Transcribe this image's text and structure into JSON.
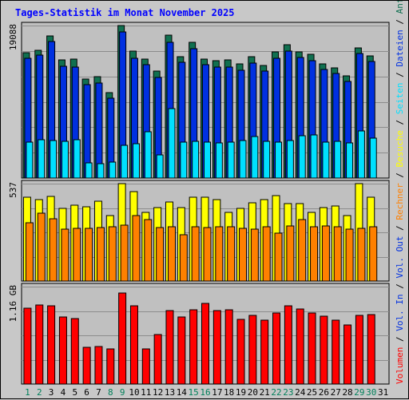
{
  "chart_data": {
    "type": "bar",
    "title": "Tages-Statistik im Monat November 2025",
    "colors": {
      "background": "#c8c8c8",
      "plot_bg": "#c0c0c0",
      "title": "#0000ff",
      "anfragen": "#107050",
      "dateien": "#0030e0",
      "seiten": "#00e0ff",
      "besuche": "#ffff00",
      "rechner": "#ff8000",
      "volumen": "#ff0000",
      "weekday_label": "#000000",
      "weekend_label": "#00805a",
      "text": "#000000"
    },
    "categories": [
      "1",
      "2",
      "3",
      "4",
      "5",
      "6",
      "7",
      "8",
      "9",
      "10",
      "11",
      "12",
      "13",
      "14",
      "15",
      "16",
      "17",
      "18",
      "19",
      "20",
      "21",
      "22",
      "23",
      "24",
      "25",
      "26",
      "27",
      "28",
      "29",
      "30",
      "31"
    ],
    "weekend_days": [
      "1",
      "2",
      "8",
      "9",
      "15",
      "16",
      "22",
      "23",
      "29",
      "30"
    ],
    "panels": [
      {
        "id": "top",
        "max_label": "19088",
        "ylim": [
          0,
          19088
        ],
        "series": [
          {
            "name": "Anfragen",
            "values": [
              15700,
              16000,
              17800,
              14800,
              14900,
              12400,
              12700,
              10700,
              19088,
              15900,
              14900,
              13400,
              17900,
              15200,
              17000,
              14900,
              14700,
              14800,
              14300,
              15200,
              14100,
              15800,
              16700,
              15800,
              15500,
              14300,
              13800,
              12800,
              16300,
              15300,
              null
            ]
          },
          {
            "name": "Dateien",
            "values": [
              15000,
              15400,
              17100,
              14000,
              13900,
              11700,
              11900,
              10000,
              18300,
              15000,
              14200,
              12600,
              17000,
              14500,
              16200,
              14200,
              13900,
              13900,
              13500,
              14400,
              13400,
              15000,
              15900,
              15100,
              14700,
              13600,
              13100,
              12100,
              15600,
              14600,
              null
            ]
          },
          {
            "name": "Seiten",
            "values": [
              4500,
              4800,
              4700,
              4600,
              4800,
              1900,
              1800,
              2000,
              4100,
              4300,
              5800,
              2900,
              8700,
              4500,
              4600,
              4500,
              4400,
              4500,
              4700,
              5200,
              4600,
              4500,
              4700,
              5300,
              5400,
              4500,
              4600,
              4400,
              5900,
              5000,
              null
            ]
          }
        ]
      },
      {
        "id": "mid",
        "max_label": "537",
        "ylim": [
          0,
          537
        ],
        "series": [
          {
            "name": "Besuche",
            "values": [
              460,
              450,
              465,
              400,
              420,
              410,
              440,
              360,
              537,
              495,
              380,
              405,
              435,
              405,
              460,
              460,
              450,
              380,
              400,
              430,
              450,
              470,
              425,
              425,
              380,
              405,
              415,
              360,
              537,
              460,
              null
            ]
          },
          {
            "name": "Rechner",
            "values": [
              320,
              375,
              345,
              285,
              290,
              290,
              295,
              300,
              310,
              360,
              340,
              295,
              300,
              255,
              300,
              295,
              300,
              300,
              290,
              285,
              300,
              265,
              305,
              340,
              300,
              305,
              300,
              285,
              290,
              300,
              null
            ]
          }
        ]
      },
      {
        "id": "bottom",
        "max_label": "1.16 GB",
        "ylim": [
          0,
          1.16
        ],
        "series": [
          {
            "name": "Volumen",
            "values": [
              0.9,
              0.94,
              0.93,
              0.8,
              0.78,
              0.44,
              0.45,
              0.42,
              1.08,
              0.93,
              0.42,
              0.59,
              0.87,
              0.8,
              0.88,
              0.96,
              0.87,
              0.88,
              0.77,
              0.82,
              0.76,
              0.85,
              0.93,
              0.89,
              0.85,
              0.81,
              0.76,
              0.7,
              0.82,
              0.83,
              null
            ]
          }
        ]
      }
    ],
    "right_legend": [
      {
        "text": "Volumen",
        "key": "volumen"
      },
      {
        "text": " / ",
        "key": "text"
      },
      {
        "text": "Vol. In",
        "key": "dateien"
      },
      {
        "text": " / ",
        "key": "text"
      },
      {
        "text": "Vol. Out",
        "key": "dateien"
      },
      {
        "text": " / ",
        "key": "text"
      },
      {
        "text": "Rechner",
        "key": "rechner"
      },
      {
        "text": " / ",
        "key": "text"
      },
      {
        "text": "Besuche",
        "key": "besuche"
      },
      {
        "text": " / ",
        "key": "text"
      },
      {
        "text": "Seiten",
        "key": "seiten"
      },
      {
        "text": " / ",
        "key": "text"
      },
      {
        "text": "Dateien",
        "key": "dateien"
      },
      {
        "text": " / ",
        "key": "text"
      },
      {
        "text": "Anfragen",
        "key": "anfragen"
      }
    ]
  }
}
